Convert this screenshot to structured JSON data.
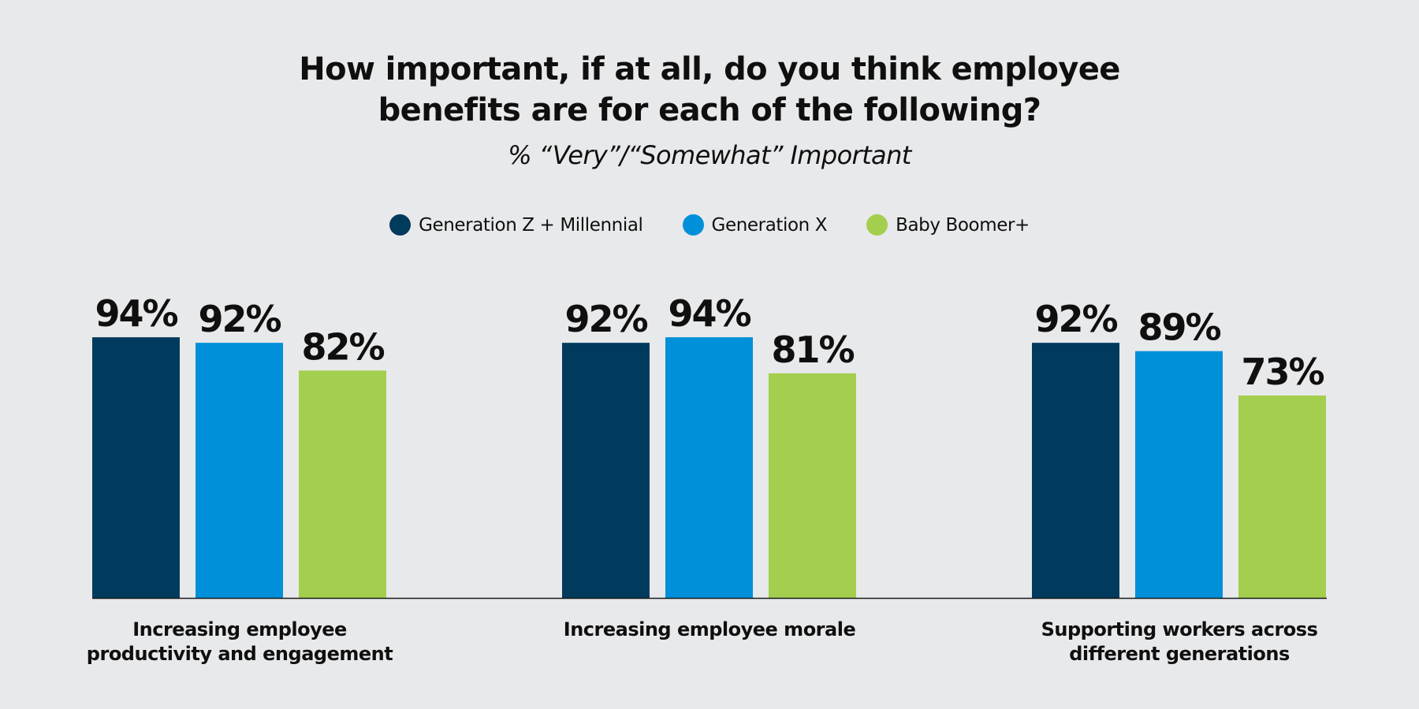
{
  "colors": {
    "background": "#e8e9eb",
    "series": [
      "#003a5d",
      "#0090d9",
      "#a4ce4e"
    ],
    "axis": "#1a1a1a"
  },
  "chart_data": {
    "type": "bar",
    "title_lines": [
      "How important, if at all, do you think employee",
      "benefits are for each of the following?"
    ],
    "subtitle": "% “Very”/“Somewhat” Important",
    "categories": [
      [
        "Increasing employee",
        "productivity and engagement"
      ],
      [
        "Increasing employee morale"
      ],
      [
        "Supporting workers across",
        "different generations"
      ]
    ],
    "series": [
      {
        "name": "Generation Z + Millennial",
        "values": [
          94,
          92,
          92
        ]
      },
      {
        "name": "Generation X",
        "values": [
          92,
          94,
          89
        ]
      },
      {
        "name": "Baby Boomer+",
        "values": [
          82,
          81,
          73
        ]
      }
    ],
    "value_suffix": "%",
    "legend_position": "top-center",
    "grid": false,
    "ylim": [
      0,
      100
    ]
  }
}
